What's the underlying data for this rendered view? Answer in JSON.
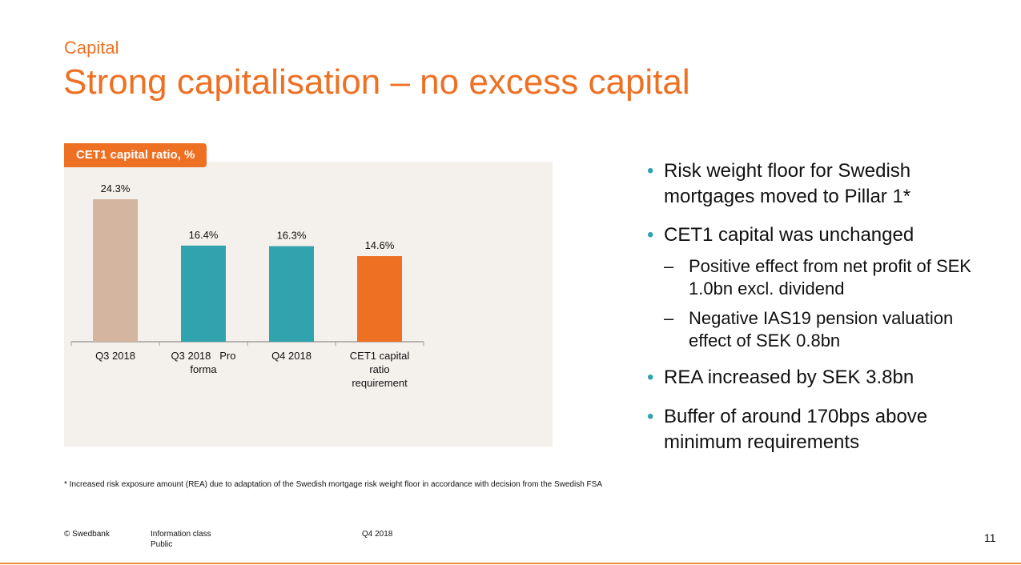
{
  "section": "Capital",
  "title": "Strong capitalisation – no excess capital",
  "chart_data": {
    "type": "bar",
    "title": "CET1 capital ratio, %",
    "categories": [
      [
        "Q3 2018"
      ],
      [
        "Q3 2018   Pro",
        "forma"
      ],
      [
        "Q4 2018"
      ],
      [
        "CET1 capital",
        "ratio",
        "requirement"
      ]
    ],
    "values": [
      24.3,
      16.4,
      16.3,
      14.6
    ],
    "data_labels": [
      "24.3%",
      "16.4%",
      "16.3%",
      "14.6%"
    ],
    "colors": [
      "#d4b6a0",
      "#30a3ae",
      "#30a3ae",
      "#ee7023"
    ],
    "ylim": [
      0,
      26
    ],
    "grid": false
  },
  "bullets": [
    {
      "text": "Risk weight floor for Swedish mortgages moved to Pillar 1*"
    },
    {
      "text": "CET1 capital was unchanged",
      "subs": [
        "Positive effect from net profit of SEK 1.0bn excl. dividend",
        "Negative IAS19 pension valuation effect of SEK 0.8bn"
      ]
    },
    {
      "text": "REA increased by SEK 3.8bn"
    },
    {
      "text": "Buffer of around 170bps above minimum requirements"
    }
  ],
  "footnote": "* Increased risk exposure amount (REA) due to adaptation of the Swedish mortgage risk weight floor in accordance with decision from the Swedish FSA",
  "footer": {
    "copyright": "© Swedbank",
    "info_class": "Information class",
    "info_value": "Public",
    "period": "Q4 2018",
    "page": "11"
  }
}
